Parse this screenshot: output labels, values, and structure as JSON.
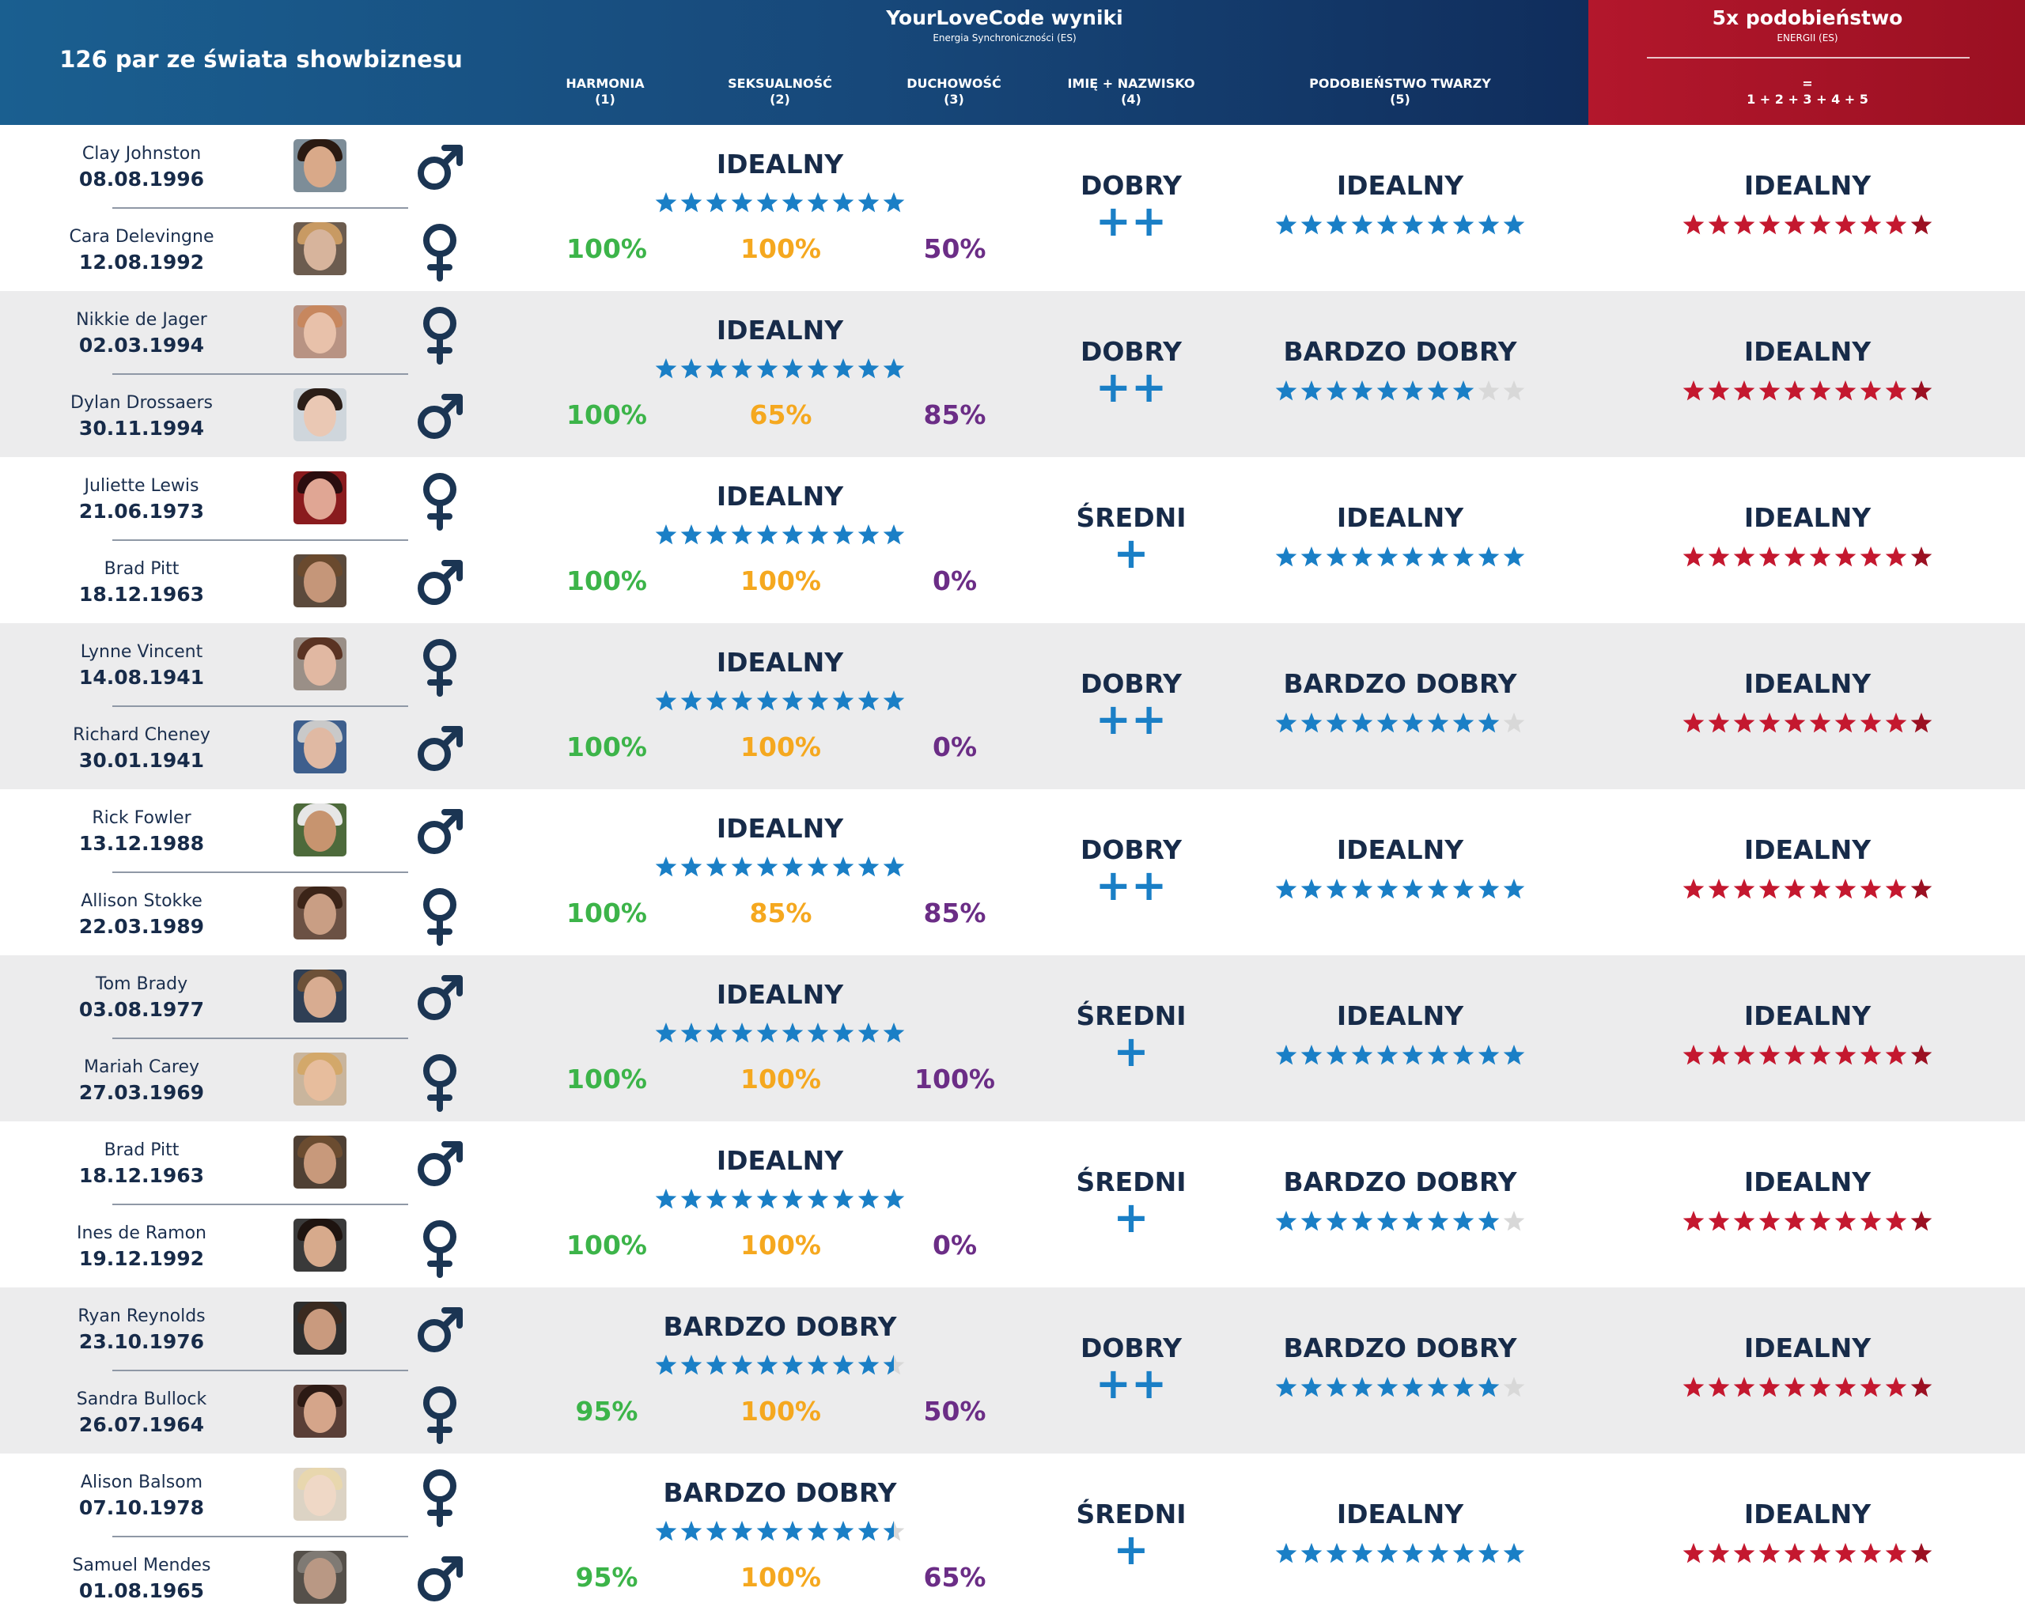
{
  "header": {
    "title": "126 par ze świata showbiznesu",
    "main_title": "YourLoveCode wyniki",
    "main_subtitle": "Energia Synchroniczności (ES)",
    "columns": [
      {
        "name": "HARMONIA",
        "num": "(1)"
      },
      {
        "name": "SEKSUALNOŚĆ",
        "num": "(2)"
      },
      {
        "name": "DUCHOWOŚĆ",
        "num": "(3)"
      },
      {
        "name": "IMIĘ + NAZWISKO",
        "num": "(4)"
      },
      {
        "name": "PODOBIEŃSTWO TWARZY",
        "num": "(5)"
      }
    ],
    "summary_title": "5x podobieństwo",
    "summary_subtitle": "ENERGII (ES)",
    "summary_eq": "=",
    "summary_formula": "1 + 2 + 3 + 4 + 5"
  },
  "colors": {
    "star_blue": "#1a7fc6",
    "star_red": "#c4182f",
    "star_red_last": "#9b1022",
    "star_gray": "#d8d8d8",
    "harmonia": "#3cb449",
    "seksualnosc": "#f5a81f",
    "duchowosc": "#6b2d86",
    "dark_text": "#172b49"
  },
  "pairs": [
    {
      "p1": {
        "name": "Clay Johnston",
        "date": "08.08.1996",
        "gender": "male-icon",
        "skin": "#d9a989",
        "hair": "#2a1a12",
        "bg": "#7d8d98"
      },
      "p2": {
        "name": "Cara Delevingne",
        "date": "12.08.1992",
        "gender": "female-icon",
        "skin": "#d7b49c",
        "hair": "#c89a63",
        "bg": "#6c5c4f"
      },
      "es": {
        "label": "IDEALNY",
        "stars": 10,
        "harmonia": "100%",
        "seksualnosc": "100%",
        "duchowosc": "50%"
      },
      "name": {
        "label": "DOBRY",
        "plus": "++"
      },
      "face": {
        "label": "IDEALNY",
        "stars": 10
      },
      "total": {
        "label": "IDEALNY",
        "stars": 10
      }
    },
    {
      "p1": {
        "name": "Nikkie de Jager",
        "date": "02.03.1994",
        "gender": "female-icon",
        "skin": "#e8c1aa",
        "hair": "#c7875e",
        "bg": "#b89383"
      },
      "p2": {
        "name": "Dylan Drossaers",
        "date": "30.11.1994",
        "gender": "male-icon",
        "skin": "#eac8b4",
        "hair": "#2b1e18",
        "bg": "#cfd6dc"
      },
      "es": {
        "label": "IDEALNY",
        "stars": 10,
        "harmonia": "100%",
        "seksualnosc": "65%",
        "duchowosc": "85%"
      },
      "name": {
        "label": "DOBRY",
        "plus": "++"
      },
      "face": {
        "label": "BARDZO DOBRY",
        "stars": 8
      },
      "total": {
        "label": "IDEALNY",
        "stars": 10
      }
    },
    {
      "p1": {
        "name": "Juliette Lewis",
        "date": "21.06.1973",
        "gender": "female-icon",
        "skin": "#e0a694",
        "hair": "#2a0d0f",
        "bg": "#8a1b1e"
      },
      "p2": {
        "name": "Brad Pitt",
        "date": "18.12.1963",
        "gender": "male-icon",
        "skin": "#c59679",
        "hair": "#6a4a2e",
        "bg": "#5b4a3c"
      },
      "es": {
        "label": "IDEALNY",
        "stars": 10,
        "harmonia": "100%",
        "seksualnosc": "100%",
        "duchowosc": "0%"
      },
      "name": {
        "label": "ŚREDNI",
        "plus": "+"
      },
      "face": {
        "label": "IDEALNY",
        "stars": 10
      },
      "total": {
        "label": "IDEALNY",
        "stars": 10
      }
    },
    {
      "p1": {
        "name": "Lynne Vincent",
        "date": "14.08.1941",
        "gender": "female-icon",
        "skin": "#e1b8a2",
        "hair": "#5a3323",
        "bg": "#9a8f87"
      },
      "p2": {
        "name": "Richard Cheney",
        "date": "30.01.1941",
        "gender": "male-icon",
        "skin": "#e0b9a3",
        "hair": "#c9c9c9",
        "bg": "#3e5f8d"
      },
      "es": {
        "label": "IDEALNY",
        "stars": 10,
        "harmonia": "100%",
        "seksualnosc": "100%",
        "duchowosc": "0%"
      },
      "name": {
        "label": "DOBRY",
        "plus": "++"
      },
      "face": {
        "label": "BARDZO DOBRY",
        "stars": 9
      },
      "total": {
        "label": "IDEALNY",
        "stars": 10
      }
    },
    {
      "p1": {
        "name": "Rick Fowler",
        "date": "13.12.1988",
        "gender": "male-icon",
        "skin": "#c7946f",
        "hair": "#e6e6e6",
        "bg": "#4d6a3b"
      },
      "p2": {
        "name": "Allison Stokke",
        "date": "22.03.1989",
        "gender": "female-icon",
        "skin": "#c99e84",
        "hair": "#3b2418",
        "bg": "#6b5144"
      },
      "es": {
        "label": "IDEALNY",
        "stars": 10,
        "harmonia": "100%",
        "seksualnosc": "85%",
        "duchowosc": "85%"
      },
      "name": {
        "label": "DOBRY",
        "plus": "++"
      },
      "face": {
        "label": "IDEALNY",
        "stars": 10
      },
      "total": {
        "label": "IDEALNY",
        "stars": 10
      }
    },
    {
      "p1": {
        "name": "Tom Brady",
        "date": "03.08.1977",
        "gender": "male-icon",
        "skin": "#d8ac91",
        "hair": "#6d5138",
        "bg": "#2f3f55"
      },
      "p2": {
        "name": "Mariah Carey",
        "date": "27.03.1969",
        "gender": "female-icon",
        "skin": "#e7bd9d",
        "hair": "#d3a86a",
        "bg": "#c9b59d"
      },
      "es": {
        "label": "IDEALNY",
        "stars": 10,
        "harmonia": "100%",
        "seksualnosc": "100%",
        "duchowosc": "100%"
      },
      "name": {
        "label": "ŚREDNI",
        "plus": "+"
      },
      "face": {
        "label": "IDEALNY",
        "stars": 10
      },
      "total": {
        "label": "IDEALNY",
        "stars": 10
      }
    },
    {
      "p1": {
        "name": "Brad Pitt",
        "date": "18.12.1963",
        "gender": "male-icon",
        "skin": "#c8997b",
        "hair": "#6b4c30",
        "bg": "#4f4034"
      },
      "p2": {
        "name": "Ines de Ramon",
        "date": "19.12.1992",
        "gender": "female-icon",
        "skin": "#d7aa8c",
        "hair": "#1e1410",
        "bg": "#3a3a3a"
      },
      "es": {
        "label": "IDEALNY",
        "stars": 10,
        "harmonia": "100%",
        "seksualnosc": "100%",
        "duchowosc": "0%"
      },
      "name": {
        "label": "ŚREDNI",
        "plus": "+"
      },
      "face": {
        "label": "BARDZO DOBRY",
        "stars": 9
      },
      "total": {
        "label": "IDEALNY",
        "stars": 10
      }
    },
    {
      "p1": {
        "name": "Ryan Reynolds",
        "date": "23.10.1976",
        "gender": "male-icon",
        "skin": "#c99a7e",
        "hair": "#3a2a20",
        "bg": "#2e2e2e"
      },
      "p2": {
        "name": "Sandra Bullock",
        "date": "26.07.1964",
        "gender": "female-icon",
        "skin": "#d5a58a",
        "hair": "#2c1a14",
        "bg": "#5a3f37"
      },
      "es": {
        "label": "BARDZO DOBRY",
        "stars": 9.5,
        "harmonia": "95%",
        "seksualnosc": "100%",
        "duchowosc": "50%"
      },
      "name": {
        "label": "DOBRY",
        "plus": "++"
      },
      "face": {
        "label": "BARDZO DOBRY",
        "stars": 9
      },
      "total": {
        "label": "IDEALNY",
        "stars": 10
      }
    },
    {
      "p1": {
        "name": "Alison Balsom",
        "date": "07.10.1978",
        "gender": "female-icon",
        "skin": "#efd8c6",
        "hair": "#e8d7ae",
        "bg": "#dcd3c4"
      },
      "p2": {
        "name": "Samuel Mendes",
        "date": "01.08.1965",
        "gender": "male-icon",
        "skin": "#b99884",
        "hair": "#7f7a74",
        "bg": "#55504a"
      },
      "es": {
        "label": "BARDZO DOBRY",
        "stars": 9.5,
        "harmonia": "95%",
        "seksualnosc": "100%",
        "duchowosc": "65%"
      },
      "name": {
        "label": "ŚREDNI",
        "plus": "+"
      },
      "face": {
        "label": "IDEALNY",
        "stars": 10
      },
      "total": {
        "label": "IDEALNY",
        "stars": 10
      }
    }
  ]
}
